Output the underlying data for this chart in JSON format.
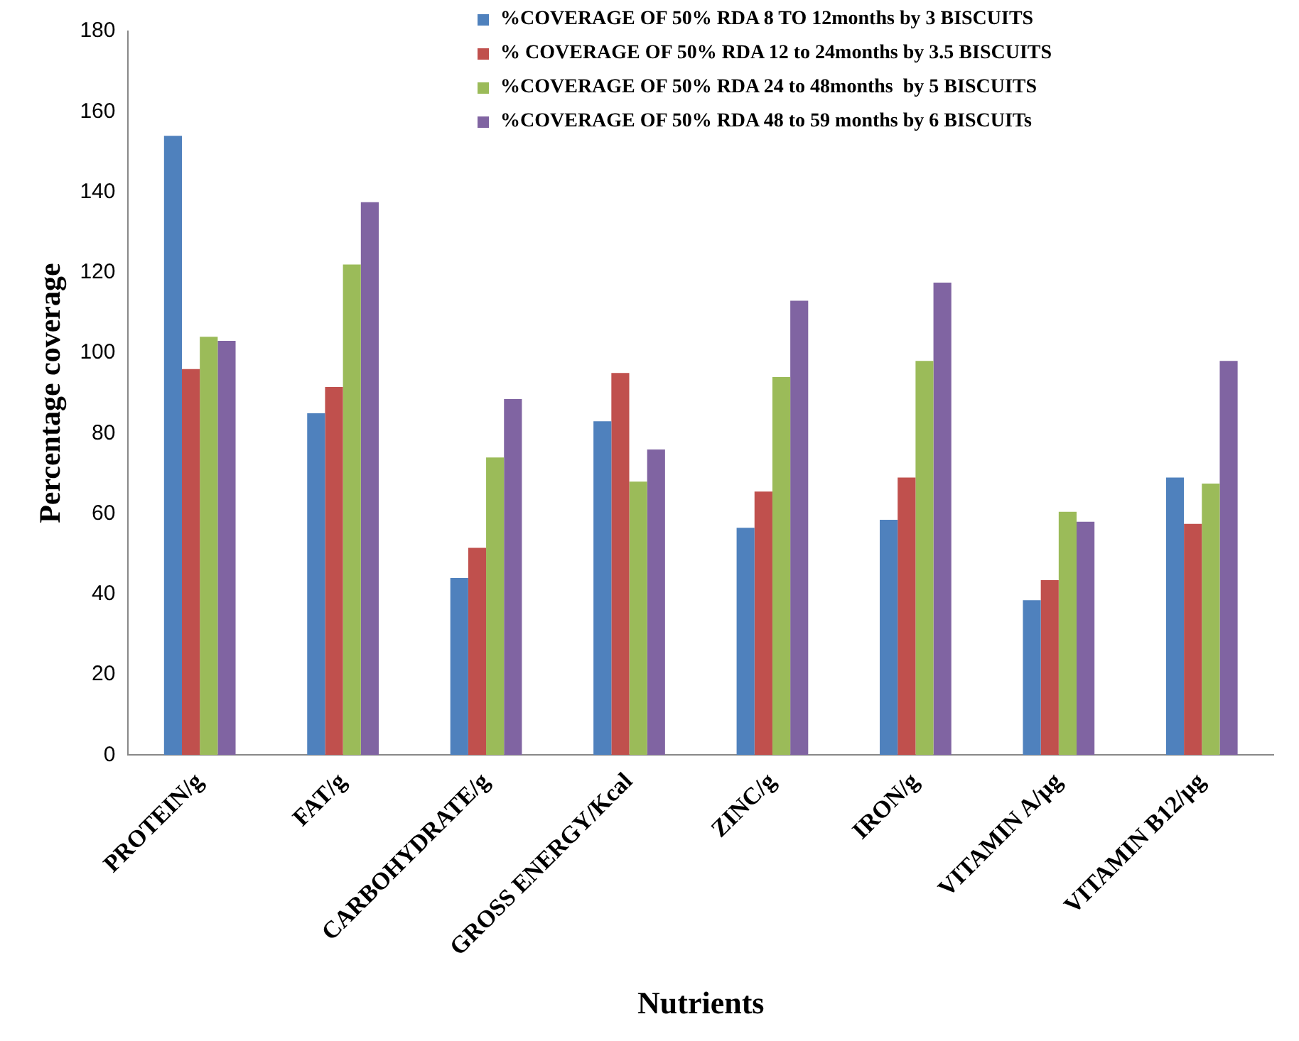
{
  "chart_data": {
    "type": "bar",
    "xlabel": "Nutrients",
    "ylabel": "Percentage coverage",
    "categories": [
      "PROTEIN/g",
      "FAT/g",
      "CARBOHYDRATE/g",
      "GROSS ENERGY/Kcal",
      "ZINC/g",
      "IRON/g",
      "VITAMIN A/µg",
      "VITAMIN B12/µg"
    ],
    "series": [
      {
        "name": "%COVERAGE OF 50% RDA 8 TO 12months by 3 BISCUITS",
        "color": "#4f81bd",
        "values": [
          154,
          85,
          44,
          83,
          56.5,
          58.5,
          38.5,
          69
        ]
      },
      {
        "name": "% COVERAGE OF 50% RDA 12 to 24months by 3.5 BISCUITS",
        "color": "#c0504d",
        "values": [
          96,
          91.5,
          51.5,
          95,
          65.5,
          69,
          43.5,
          57.5
        ]
      },
      {
        "name": "%COVERAGE OF 50% RDA 24 to 48months  by 5 BISCUITS",
        "color": "#9bbb59",
        "values": [
          104,
          122,
          74,
          68,
          94,
          98,
          60.5,
          67.5
        ]
      },
      {
        "name": "%COVERAGE OF 50% RDA 48 to 59 months by 6 BISCUITs",
        "color": "#8064a2",
        "values": [
          103,
          137.5,
          88.5,
          76,
          113,
          117.5,
          58,
          98
        ]
      }
    ],
    "ylim": [
      0,
      180
    ],
    "yticks": [
      0,
      20,
      40,
      60,
      80,
      100,
      120,
      140,
      160,
      180
    ],
    "grid": false,
    "legend": "top right"
  }
}
